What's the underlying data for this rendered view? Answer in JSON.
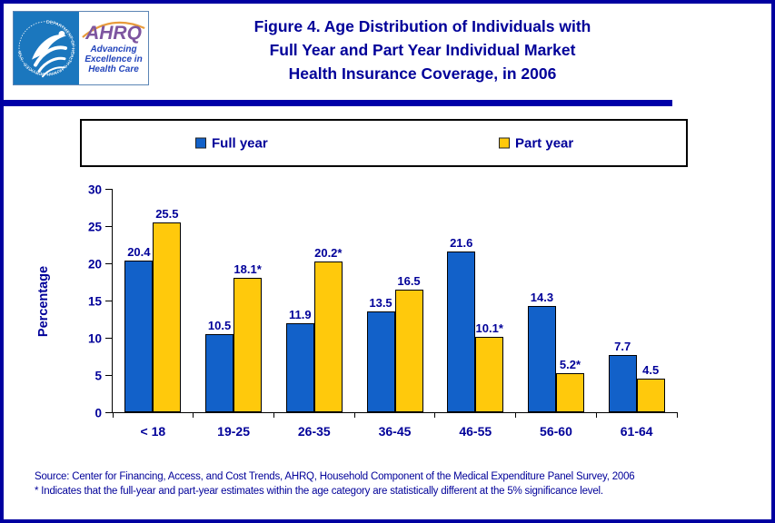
{
  "header": {
    "logo": {
      "seal_ring_text": "DEPARTMENT OF HEALTH & HUMAN SERVICES · USA",
      "ahrq": "AHRQ",
      "tagline_lines": [
        "Advancing",
        "Excellence in",
        "Health Care"
      ]
    },
    "title_lines": [
      "Figure 4. Age Distribution of Individuals with",
      "Full Year and Part Year Individual Market",
      "Health Insurance Coverage, in 2006"
    ]
  },
  "chart_data": {
    "type": "bar",
    "title": "Figure 4. Age Distribution of Individuals with Full Year and Part Year Individual Market Health Insurance Coverage, in 2006",
    "categories": [
      "< 18",
      "19-25",
      "26-35",
      "36-45",
      "46-55",
      "56-60",
      "61-64"
    ],
    "series": [
      {
        "name": "Full year",
        "color": "#1261c9",
        "values": [
          20.4,
          10.5,
          11.9,
          13.5,
          21.6,
          14.3,
          7.7
        ],
        "labels": [
          "20.4",
          "10.5",
          "11.9",
          "13.5",
          "21.6",
          "14.3",
          "7.7"
        ]
      },
      {
        "name": "Part year",
        "color": "#ffc90c",
        "values": [
          25.5,
          18.1,
          20.2,
          16.5,
          10.1,
          5.2,
          4.5
        ],
        "labels": [
          "25.5",
          "18.1*",
          "20.2*",
          "16.5",
          "10.1*",
          "5.2*",
          "4.5"
        ]
      }
    ],
    "xlabel": "",
    "ylabel": "Percentage",
    "ylim": [
      0,
      30
    ],
    "yticks": [
      0,
      5,
      10,
      15,
      20,
      25,
      30
    ],
    "grid": false,
    "legend_position": "top"
  },
  "footer": {
    "source_line": "Source: Center for Financing, Access, and Cost Trends, AHRQ, Household Component of the Medical Expenditure Panel Survey, 2006",
    "note_line": "* Indicates that the full-year and part-year estimates within the age category are statistically different at the 5% significance level."
  }
}
